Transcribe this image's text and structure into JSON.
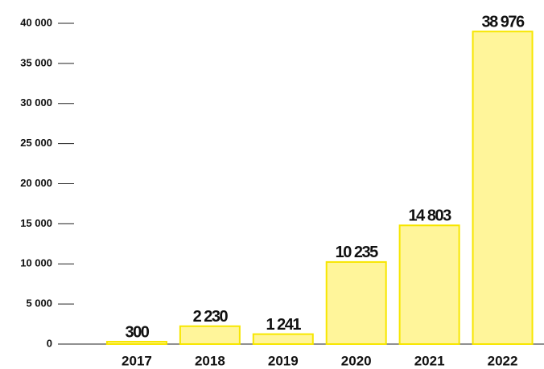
{
  "chart_data": {
    "type": "bar",
    "categories": [
      "2017",
      "2018",
      "2019",
      "2020",
      "2021",
      "2022"
    ],
    "values": [
      300,
      2230,
      1241,
      10235,
      14803,
      38976
    ],
    "value_labels": [
      "300",
      "2 230",
      "1 241",
      "10 235",
      "14 803",
      "38 976"
    ],
    "color": "#fff59a",
    "edge_color": "#f7e600",
    "ylim": [
      0,
      40000
    ],
    "yticks": [
      0,
      {
        "value": 5000,
        "label": "5 000"
      },
      {
        "value": 10000,
        "label": "10 000"
      },
      {
        "value": 15000,
        "label": "15 000"
      },
      {
        "value": 20000,
        "label": "20 000"
      },
      {
        "value": 25000,
        "label": "25 000"
      },
      {
        "value": 30000,
        "label": "30 000"
      },
      {
        "value": 35000,
        "label": "35 000"
      },
      {
        "value": 40000,
        "label": "40 000"
      }
    ]
  }
}
